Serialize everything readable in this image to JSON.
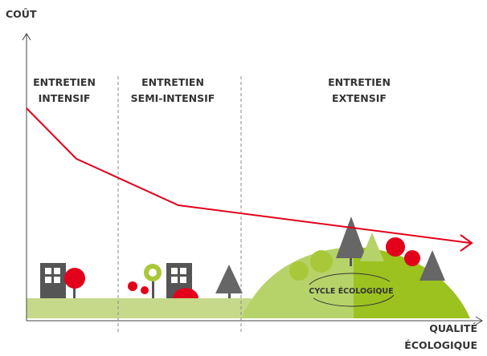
{
  "axes": {
    "y_label": "COÛT",
    "x_label": [
      "QUALITÉ",
      "ÉCOLOGIQUE"
    ]
  },
  "zones": [
    {
      "lines": [
        "ENTRETIEN",
        "INTENSIF"
      ]
    },
    {
      "lines": [
        "ENTRETIEN",
        "SEMI-INTENSIF"
      ]
    },
    {
      "lines": [
        "ENTRETIEN",
        "EXTENSIF"
      ]
    }
  ],
  "cycle_label": "CYCLE ÉCOLOGIQUE"
}
